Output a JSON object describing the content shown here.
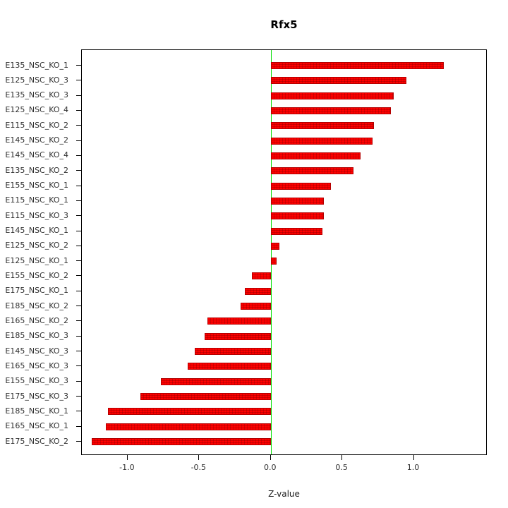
{
  "chart_data": {
    "type": "bar",
    "orientation": "horizontal",
    "title": "Rfx5",
    "xlabel": "Z-value",
    "ylabel": "",
    "xlim": [
      -1.32,
      1.515
    ],
    "x_ticks": [
      -1.0,
      -0.5,
      0.0,
      0.5,
      1.0
    ],
    "x_tick_labels": [
      "-1.0",
      "-0.5",
      "0.0",
      "0.5",
      "1.0"
    ],
    "grid": false,
    "legend": null,
    "bar_color": "#ff0000",
    "bar_edge_color": "#b30000",
    "zero_line_color": "#00dd00",
    "categories": [
      "E135_NSC_KO_1",
      "E125_NSC_KO_3",
      "E135_NSC_KO_3",
      "E125_NSC_KO_4",
      "E115_NSC_KO_2",
      "E145_NSC_KO_2",
      "E145_NSC_KO_4",
      "E135_NSC_KO_2",
      "E155_NSC_KO_1",
      "E115_NSC_KO_1",
      "E115_NSC_KO_3",
      "E145_NSC_KO_1",
      "E125_NSC_KO_2",
      "E125_NSC_KO_1",
      "E155_NSC_KO_2",
      "E175_NSC_KO_1",
      "E185_NSC_KO_2",
      "E165_NSC_KO_2",
      "E185_NSC_KO_3",
      "E145_NSC_KO_3",
      "E165_NSC_KO_3",
      "E155_NSC_KO_3",
      "E175_NSC_KO_3",
      "E185_NSC_KO_1",
      "E165_NSC_KO_1",
      "E175_NSC_KO_2"
    ],
    "values": [
      1.21,
      0.95,
      0.86,
      0.84,
      0.72,
      0.71,
      0.63,
      0.58,
      0.42,
      0.37,
      0.37,
      0.36,
      0.06,
      0.04,
      -0.13,
      -0.18,
      -0.21,
      -0.44,
      -0.46,
      -0.53,
      -0.58,
      -0.77,
      -0.91,
      -1.14,
      -1.15,
      -1.25
    ]
  }
}
